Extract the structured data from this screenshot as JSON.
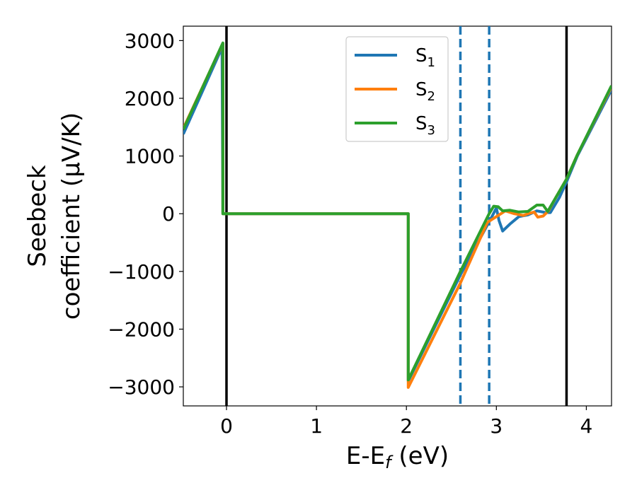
{
  "chart_data": {
    "type": "line",
    "xlabel_parts": [
      "E-E",
      "f",
      " (eV)"
    ],
    "ylabel_lines": [
      "Seebeck",
      "coefficient  (μV/K)"
    ],
    "xlim": [
      -0.48,
      4.28
    ],
    "ylim": [
      -3330,
      3250
    ],
    "xticks": [
      0,
      1,
      2,
      3,
      4
    ],
    "xtick_labels": [
      "0",
      "1",
      "2",
      "3",
      "4"
    ],
    "yticks": [
      -3000,
      -2000,
      -1000,
      0,
      1000,
      2000,
      3000
    ],
    "ytick_labels": [
      "−3000",
      "−2000",
      "−1000",
      "0",
      "1000",
      "2000",
      "3000"
    ],
    "grid": false,
    "legend_placement": "top-center",
    "vlines_solid": [
      0.0,
      3.78
    ],
    "vlines_dashed": [
      2.6,
      2.92
    ],
    "vline_solid_color": "#000000",
    "vline_dashed_color": "#1f77b4",
    "series": [
      {
        "name_base": "S",
        "name_sub": "1",
        "color": "#1f77b4",
        "points": [
          [
            -0.48,
            1380
          ],
          [
            -0.05,
            2880
          ],
          [
            -0.04,
            0
          ],
          [
            2.02,
            0
          ],
          [
            2.02,
            -2900
          ],
          [
            2.6,
            -1060
          ],
          [
            2.95,
            -50
          ],
          [
            3.0,
            100
          ],
          [
            3.03,
            -120
          ],
          [
            3.07,
            -300
          ],
          [
            3.15,
            -180
          ],
          [
            3.25,
            -50
          ],
          [
            3.35,
            -20
          ],
          [
            3.45,
            50
          ],
          [
            3.55,
            20
          ],
          [
            3.6,
            20
          ],
          [
            3.7,
            280
          ],
          [
            3.78,
            550
          ],
          [
            3.9,
            1000
          ],
          [
            4.28,
            2150
          ]
        ]
      },
      {
        "name_base": "S",
        "name_sub": "2",
        "color": "#ff7f0e",
        "points": [
          [
            -0.48,
            1480
          ],
          [
            -0.04,
            2950
          ],
          [
            -0.04,
            0
          ],
          [
            2.02,
            0
          ],
          [
            2.02,
            -3010
          ],
          [
            2.6,
            -1200
          ],
          [
            2.9,
            -150
          ],
          [
            3.0,
            -50
          ],
          [
            3.1,
            50
          ],
          [
            3.2,
            0
          ],
          [
            3.3,
            -30
          ],
          [
            3.35,
            0
          ],
          [
            3.42,
            30
          ],
          [
            3.46,
            -60
          ],
          [
            3.52,
            -40
          ],
          [
            3.58,
            50
          ],
          [
            3.65,
            250
          ],
          [
            3.78,
            600
          ],
          [
            3.9,
            1020
          ],
          [
            4.28,
            2200
          ]
        ]
      },
      {
        "name_base": "S",
        "name_sub": "3",
        "color": "#2ca02c",
        "points": [
          [
            -0.48,
            1460
          ],
          [
            -0.04,
            2960
          ],
          [
            -0.04,
            0
          ],
          [
            2.02,
            0
          ],
          [
            2.02,
            -2880
          ],
          [
            2.6,
            -1000
          ],
          [
            2.92,
            0
          ],
          [
            2.97,
            130
          ],
          [
            3.02,
            120
          ],
          [
            3.07,
            50
          ],
          [
            3.15,
            60
          ],
          [
            3.25,
            30
          ],
          [
            3.35,
            40
          ],
          [
            3.45,
            150
          ],
          [
            3.52,
            150
          ],
          [
            3.57,
            40
          ],
          [
            3.65,
            250
          ],
          [
            3.78,
            600
          ],
          [
            3.9,
            1020
          ],
          [
            4.28,
            2220
          ]
        ]
      }
    ]
  }
}
